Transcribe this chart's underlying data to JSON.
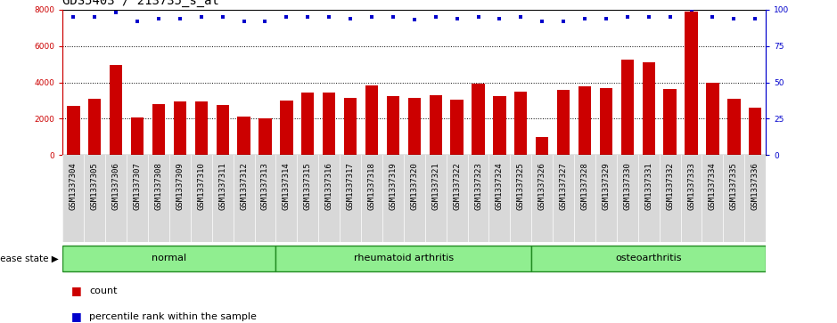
{
  "title": "GDS5403 / 213735_s_at",
  "samples": [
    "GSM1337304",
    "GSM1337305",
    "GSM1337306",
    "GSM1337307",
    "GSM1337308",
    "GSM1337309",
    "GSM1337310",
    "GSM1337311",
    "GSM1337312",
    "GSM1337313",
    "GSM1337314",
    "GSM1337315",
    "GSM1337316",
    "GSM1337317",
    "GSM1337318",
    "GSM1337319",
    "GSM1337320",
    "GSM1337321",
    "GSM1337322",
    "GSM1337323",
    "GSM1337324",
    "GSM1337325",
    "GSM1337326",
    "GSM1337327",
    "GSM1337328",
    "GSM1337329",
    "GSM1337330",
    "GSM1337331",
    "GSM1337332",
    "GSM1337333",
    "GSM1337334",
    "GSM1337335",
    "GSM1337336"
  ],
  "counts": [
    2700,
    3100,
    4950,
    2050,
    2800,
    2950,
    2950,
    2750,
    2100,
    2000,
    3020,
    3450,
    3450,
    3150,
    3850,
    3250,
    3150,
    3300,
    3050,
    3950,
    3250,
    3500,
    1000,
    3600,
    3800,
    3700,
    5250,
    5100,
    3650,
    7900,
    4000,
    3100,
    2600
  ],
  "percentile_ranks": [
    95,
    95,
    98,
    92,
    94,
    94,
    95,
    95,
    92,
    92,
    95,
    95,
    95,
    94,
    95,
    95,
    93,
    95,
    94,
    95,
    94,
    95,
    92,
    92,
    94,
    94,
    95,
    95,
    95,
    100,
    95,
    94,
    94
  ],
  "groups": [
    {
      "label": "normal",
      "start": 0,
      "end": 10
    },
    {
      "label": "rheumatoid arthritis",
      "start": 10,
      "end": 22
    },
    {
      "label": "osteoarthritis",
      "start": 22,
      "end": 33
    }
  ],
  "bar_color": "#cc0000",
  "dot_color": "#0000cc",
  "group_color": "#90ee90",
  "group_border_color": "#228B22",
  "ylim_left": [
    0,
    8000
  ],
  "ylim_right": [
    0,
    100
  ],
  "yticks_left": [
    0,
    2000,
    4000,
    6000,
    8000
  ],
  "yticks_right": [
    0,
    25,
    50,
    75,
    100
  ],
  "grid_values": [
    2000,
    4000,
    6000
  ],
  "background_color": "#ffffff",
  "title_fontsize": 10,
  "tick_fontsize": 6.5,
  "legend_fontsize": 8,
  "disease_state_label": "disease state",
  "legend_items": [
    "count",
    "percentile rank within the sample"
  ]
}
